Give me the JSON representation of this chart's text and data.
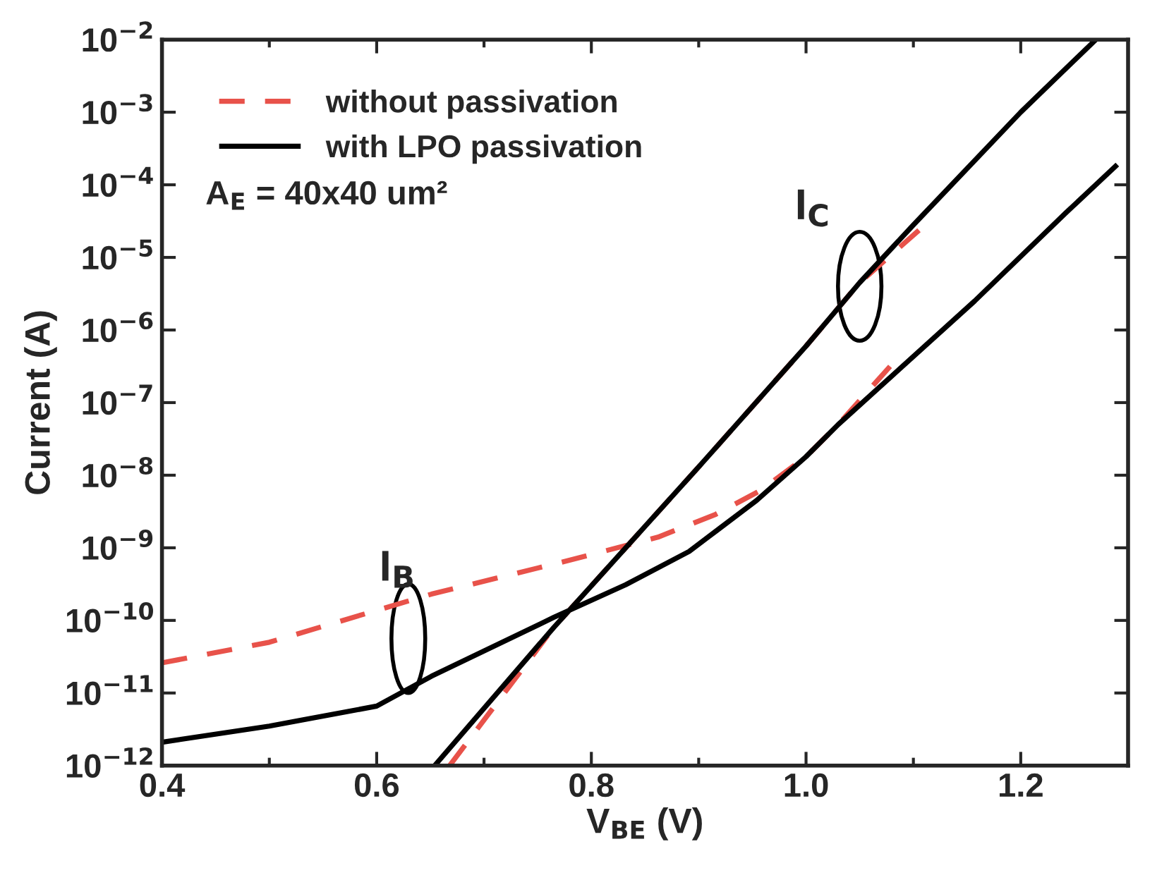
{
  "chart_data": {
    "type": "line",
    "xlabel": "V$_{BE}$ (V)",
    "ylabel": "Current (A)",
    "log": "y",
    "xlim": [
      0.4,
      1.3
    ],
    "ylim": [
      1e-12,
      0.01
    ],
    "xticks": [
      0.4,
      {
        "value": 0.5,
        "label": null
      },
      0.6,
      {
        "value": 0.7,
        "label": null
      },
      0.8,
      {
        "value": 0.9,
        "label": null
      },
      {
        "value": 1.0,
        "label": "1.0"
      },
      {
        "value": 1.1,
        "label": null
      },
      1.2
    ],
    "yticks": [
      {
        "value": 1e-12,
        "label": "10$^{−12}$"
      },
      {
        "value": 1e-11,
        "label": "10$^{−11}$"
      },
      {
        "value": 1e-10,
        "label": "10$^{−10}$"
      },
      {
        "value": 1e-09,
        "label": "10$^{−9}$"
      },
      {
        "value": 1e-08,
        "label": "10$^{−8}$"
      },
      {
        "value": 1e-07,
        "label": "10$^{−7}$"
      },
      {
        "value": 1e-06,
        "label": "10$^{−6}$"
      },
      {
        "value": 1e-05,
        "label": "10$^{−5}$"
      },
      {
        "value": 0.0001,
        "label": "10$^{−4}$"
      },
      {
        "value": 0.001,
        "label": "10$^{−3}$"
      },
      {
        "value": 0.01,
        "label": "10$^{−2}$"
      }
    ],
    "grid": false,
    "legend": "top left",
    "series": [
      {
        "name": "without passivation",
        "color": "#e8524a",
        "line_style": "dashed",
        "x": [
          0.4,
          0.5,
          0.651,
          0.777,
          0.862,
          0.916,
          0.958,
          1.0,
          1.03,
          1.081,
          null,
          0.668,
          0.765,
          0.9,
          1.0,
          1.05,
          1.107
        ],
        "values": [
          2.6e-11,
          5e-11,
          2.3e-10,
          6.6e-10,
          1.4e-09,
          2.9e-09,
          6.2e-09,
          1.8e-08,
          5e-08,
          3.5e-07,
          null,
          1e-12,
          8e-11,
          1.3e-08,
          6e-07,
          4.5e-06,
          2.5e-05
        ]
      },
      {
        "name": "with LPO passivation",
        "color": "#000000",
        "line_style": "solid",
        "x": [
          0.4,
          0.5,
          0.6,
          0.651,
          0.765,
          0.832,
          0.891,
          0.954,
          1.0,
          1.03,
          1.157,
          1.242,
          1.29,
          null,
          0.654,
          0.765,
          0.9,
          1.0,
          1.05,
          1.1,
          1.2,
          1.27
        ],
        "values": [
          2.1e-12,
          3.5e-12,
          6.6e-12,
          1.7e-11,
          1.1e-10,
          3.1e-10,
          8.9e-10,
          4.5e-09,
          1.8e-08,
          5e-08,
          2.5e-06,
          4.1e-05,
          0.00019,
          null,
          1e-12,
          8e-11,
          1.3e-08,
          6e-07,
          4.5e-06,
          2.8e-05,
          0.001,
          0.01
        ]
      }
    ],
    "annotations": [
      {
        "text": "A$_{E}$ = 40x40 um²"
      },
      {
        "text": "I$_{C}$",
        "x": 1.05,
        "y": 4e-06
      },
      "I$_{B}$"
    ]
  }
}
